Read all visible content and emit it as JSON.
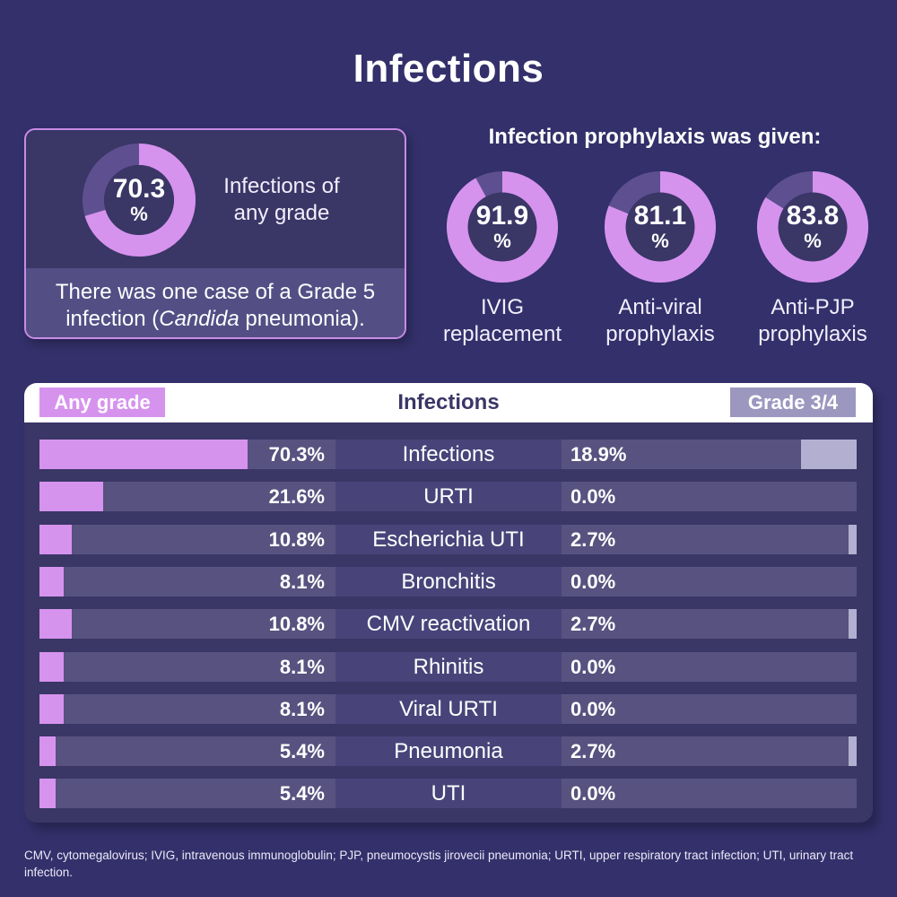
{
  "title": "Infections",
  "colors": {
    "background": "#33306b",
    "any_grade": "#d693ee",
    "grade34": "#b2afd0",
    "donut_remainder": "#5e5090",
    "track": "#57527f"
  },
  "summary": {
    "value": "70.3",
    "pct_symbol": "%",
    "description": "Infections of any grade",
    "note_prefix": "There was one case of a Grade 5 infection (",
    "note_italic": "Candida",
    "note_suffix": " pneumonia)."
  },
  "prophylaxis": {
    "title": "Infection prophylaxis was given:",
    "items": [
      {
        "value": "91.9",
        "pct_symbol": "%",
        "label_line1": "IVIG",
        "label_line2": "replacement"
      },
      {
        "value": "81.1",
        "pct_symbol": "%",
        "label_line1": "Anti-viral",
        "label_line2": "prophylaxis"
      },
      {
        "value": "83.8",
        "pct_symbol": "%",
        "label_line1": "Anti-PJP",
        "label_line2": "prophylaxis"
      }
    ]
  },
  "table": {
    "title": "Infections",
    "left_tag": "Any grade",
    "right_tag": "Grade 3/4"
  },
  "footnote": "CMV, cytomegalovirus; IVIG, intravenous immunoglobulin; PJP, pneumocystis jirovecii pneumonia; URTI, upper respiratory tract infection; UTI, urinary tract infection.",
  "chart_data": [
    {
      "type": "pie",
      "title": "Infections of any grade",
      "values": [
        70.3,
        29.7
      ],
      "labels": [
        "Infections of any grade",
        "Remainder"
      ]
    },
    {
      "type": "pie",
      "title": "Infection prophylaxis was given",
      "series": [
        {
          "name": "IVIG replacement",
          "values": [
            91.9,
            8.1
          ]
        },
        {
          "name": "Anti-viral prophylaxis",
          "values": [
            81.1,
            18.9
          ]
        },
        {
          "name": "Anti-PJP prophylaxis",
          "values": [
            83.8,
            16.2
          ]
        }
      ]
    },
    {
      "type": "bar",
      "title": "Infections",
      "orientation": "horizontal-butterfly",
      "categories": [
        "Infections",
        "URTI",
        "Escherichia UTI",
        "Bronchitis",
        "CMV reactivation",
        "Rhinitis",
        "Viral URTI",
        "Pneumonia",
        "UTI"
      ],
      "series": [
        {
          "name": "Any grade",
          "values": [
            70.3,
            21.6,
            10.8,
            8.1,
            10.8,
            8.1,
            8.1,
            5.4,
            5.4
          ]
        },
        {
          "name": "Grade 3/4",
          "values": [
            18.9,
            0.0,
            2.7,
            0.0,
            2.7,
            0.0,
            0.0,
            2.7,
            0.0
          ]
        }
      ],
      "value_labels_left": [
        "70.3%",
        "21.6%",
        "10.8%",
        "8.1%",
        "10.8%",
        "8.1%",
        "8.1%",
        "5.4%",
        "5.4%"
      ],
      "value_labels_right": [
        "18.9%",
        "0.0%",
        "2.7%",
        "0.0%",
        "2.7%",
        "0.0%",
        "0.0%",
        "2.7%",
        "0.0%"
      ],
      "unit": "%",
      "legend": [
        "Any grade",
        "Grade 3/4"
      ],
      "legend_placement": "top"
    }
  ]
}
